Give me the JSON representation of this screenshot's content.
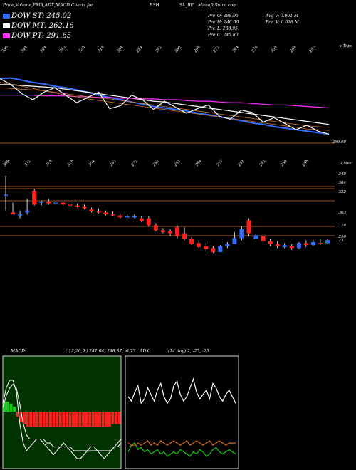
{
  "header": {
    "title": "Price,Volume,EMA,ADX,MACD Charts for",
    "symbol": "BSH",
    "symbol_suffix": "SL_BE",
    "site": "MunafaSutra.com",
    "ohlc": {
      "open": "O: 288.95",
      "high": "H: 246.00",
      "low": "L: 288.95",
      "close": "C: 245.80"
    },
    "prev_labels": [
      "Pre",
      "Pre",
      "Pre",
      "Pre"
    ],
    "avg_volume": "Avg V: 0.001 M",
    "prev_volume_label": "Pre",
    "prev_volume": "V: 0.018 M"
  },
  "legend": [
    {
      "label": "DOW ST: 245.02",
      "color": "#2f6cff"
    },
    {
      "label": "DOW MT: 262.16",
      "color": "#ffffff"
    },
    {
      "label": "DOW PT: 291.65",
      "color": "#ff33ff"
    }
  ],
  "colors": {
    "up": "#2f6cff",
    "down": "#ff2020",
    "grid": "#c87533",
    "macd_hist": "#ff2020",
    "adx_green": "#11cc11",
    "adx_orange": "#e07010"
  },
  "chart_data": [
    {
      "type": "line",
      "name": "ema-panel",
      "top_ticks": [
        "360",
        "348",
        "344",
        "340",
        "328",
        "316",
        "308",
        "284",
        "292",
        "280",
        "296",
        "272",
        "264",
        "276",
        "254",
        "264",
        "240"
      ],
      "top_right_label": "x Topo",
      "bottom_ticks": [
        "369",
        "332",
        "326",
        "318",
        "304",
        "292",
        "272",
        "292",
        "283",
        "264",
        "277",
        "251",
        "242",
        "258",
        "258"
      ],
      "price_label": "290.00",
      "series": [
        {
          "color": "#2f6cff",
          "values": [
            340,
            341,
            338,
            335,
            333,
            330,
            328,
            325,
            322,
            318,
            315,
            312,
            309,
            306,
            303,
            301,
            299,
            297,
            294,
            292,
            289,
            287,
            284,
            281,
            279,
            276,
            274,
            272,
            270,
            268,
            266
          ]
        },
        {
          "color": "#ffffff",
          "values": [
            332,
            332,
            331,
            330,
            329,
            328,
            326,
            324,
            322,
            320,
            318,
            316,
            314,
            312,
            310,
            309,
            307,
            305,
            303,
            301,
            299,
            297,
            295,
            293,
            291,
            289,
            287,
            285,
            283,
            281,
            279
          ]
        },
        {
          "color": "#ff33ff",
          "values": [
            318,
            318,
            318,
            318,
            317,
            317,
            317,
            316,
            316,
            315,
            315,
            314,
            314,
            313,
            313,
            312,
            312,
            311,
            310,
            310,
            309,
            308,
            308,
            307,
            306,
            305,
            305,
            304,
            303,
            302,
            301
          ]
        }
      ]
    },
    {
      "type": "candlestick",
      "name": "price-panel",
      "price_labels": [
        "384",
        "348",
        "322",
        "303",
        "28",
        "250",
        "237"
      ],
      "title": "Lows",
      "candles": [
        {
          "o": 316,
          "h": 335,
          "l": 300,
          "c": 316
        },
        {
          "o": 298,
          "h": 308,
          "l": 296,
          "c": 296
        },
        {
          "o": 296,
          "h": 300,
          "l": 292,
          "c": 296
        },
        {
          "o": 298,
          "h": 312,
          "l": 296,
          "c": 300
        },
        {
          "o": 320,
          "h": 322,
          "l": 305,
          "c": 306
        },
        {
          "o": 308,
          "h": 310,
          "l": 305,
          "c": 309
        },
        {
          "o": 309,
          "h": 312,
          "l": 306,
          "c": 307
        },
        {
          "o": 307,
          "h": 310,
          "l": 306,
          "c": 308
        },
        {
          "o": 308,
          "h": 309,
          "l": 305,
          "c": 306
        },
        {
          "o": 306,
          "h": 307,
          "l": 304,
          "c": 305
        },
        {
          "o": 305,
          "h": 307,
          "l": 303,
          "c": 304
        },
        {
          "o": 304,
          "h": 306,
          "l": 301,
          "c": 302
        },
        {
          "o": 301,
          "h": 303,
          "l": 298,
          "c": 299
        },
        {
          "o": 299,
          "h": 302,
          "l": 297,
          "c": 298
        },
        {
          "o": 298,
          "h": 300,
          "l": 295,
          "c": 296
        },
        {
          "o": 296,
          "h": 299,
          "l": 294,
          "c": 295
        },
        {
          "o": 295,
          "h": 297,
          "l": 292,
          "c": 293
        },
        {
          "o": 293,
          "h": 296,
          "l": 291,
          "c": 294
        },
        {
          "o": 294,
          "h": 296,
          "l": 292,
          "c": 294
        },
        {
          "o": 292,
          "h": 294,
          "l": 288,
          "c": 289
        },
        {
          "o": 292,
          "h": 294,
          "l": 284,
          "c": 285
        },
        {
          "o": 285,
          "h": 287,
          "l": 279,
          "c": 280
        },
        {
          "o": 280,
          "h": 282,
          "l": 277,
          "c": 278
        },
        {
          "o": 279,
          "h": 281,
          "l": 274,
          "c": 277
        },
        {
          "o": 283,
          "h": 285,
          "l": 272,
          "c": 274
        },
        {
          "o": 277,
          "h": 283,
          "l": 270,
          "c": 271
        },
        {
          "o": 271,
          "h": 273,
          "l": 265,
          "c": 266
        },
        {
          "o": 267,
          "h": 270,
          "l": 262,
          "c": 263
        },
        {
          "o": 264,
          "h": 267,
          "l": 258,
          "c": 261
        },
        {
          "o": 262,
          "h": 264,
          "l": 257,
          "c": 258
        },
        {
          "o": 258,
          "h": 265,
          "l": 258,
          "c": 264
        },
        {
          "o": 264,
          "h": 268,
          "l": 262,
          "c": 266
        },
        {
          "o": 266,
          "h": 278,
          "l": 266,
          "c": 272
        },
        {
          "o": 272,
          "h": 284,
          "l": 270,
          "c": 281
        },
        {
          "o": 290,
          "h": 292,
          "l": 274,
          "c": 277
        },
        {
          "o": 271,
          "h": 276,
          "l": 268,
          "c": 275
        },
        {
          "o": 274,
          "h": 276,
          "l": 267,
          "c": 269
        },
        {
          "o": 269,
          "h": 271,
          "l": 264,
          "c": 266
        },
        {
          "o": 266,
          "h": 269,
          "l": 262,
          "c": 264
        },
        {
          "o": 263,
          "h": 267,
          "l": 262,
          "c": 265
        },
        {
          "o": 264,
          "h": 266,
          "l": 260,
          "c": 262
        },
        {
          "o": 262,
          "h": 268,
          "l": 261,
          "c": 267
        },
        {
          "o": 267,
          "h": 270,
          "l": 263,
          "c": 265
        },
        {
          "o": 265,
          "h": 270,
          "l": 264,
          "c": 268
        },
        {
          "o": 267,
          "h": 271,
          "l": 265,
          "c": 266
        },
        {
          "o": 267,
          "h": 271,
          "l": 266,
          "c": 270
        }
      ]
    },
    {
      "type": "bar",
      "name": "macd-panel",
      "label": "MACD:",
      "params": "( 12,26,9 ) 241.64, 248.37, -6.73",
      "histogram": [
        4,
        4,
        3,
        2,
        -2,
        -4,
        -5,
        -6,
        -6,
        -6,
        -6,
        -6,
        -6,
        -6,
        -6,
        -6,
        -6,
        -6,
        -6,
        -6,
        -6,
        -6,
        -6,
        -6,
        -6,
        -6,
        -6,
        -6,
        -6,
        -6,
        -6,
        -6,
        -6,
        -5,
        -5,
        -5
      ],
      "series": [
        {
          "color": "#ffffff",
          "values": [
            2,
            6,
            8,
            8,
            5,
            -3,
            -8,
            -10,
            -9,
            -8,
            -7,
            -7,
            -8,
            -9,
            -10,
            -11,
            -10,
            -9,
            -8,
            -9,
            -10,
            -11,
            -12,
            -12,
            -11,
            -10,
            -9,
            -9,
            -10,
            -11,
            -12,
            -11,
            -10,
            -9,
            -8,
            -7
          ]
        },
        {
          "color": "#ffffff",
          "values": [
            1,
            4,
            6,
            7,
            6,
            2,
            -3,
            -6,
            -7,
            -7,
            -7,
            -7,
            -7,
            -8,
            -8,
            -9,
            -9,
            -9,
            -9,
            -9,
            -9,
            -10,
            -10,
            -10,
            -10,
            -10,
            -10,
            -10,
            -10,
            -10,
            -10,
            -10,
            -10,
            -9,
            -9,
            -8
          ]
        }
      ]
    },
    {
      "type": "line",
      "name": "adx-panel",
      "label": "ADX",
      "params": "(14 day) 2, -25, -25",
      "series": [
        {
          "color": "#ffffff",
          "values": [
            30,
            28,
            32,
            35,
            27,
            29,
            34,
            31,
            28,
            33,
            36,
            30,
            27,
            29,
            35,
            37,
            31,
            28,
            30,
            34,
            38,
            32,
            29,
            31,
            33,
            29,
            36,
            34,
            30,
            28,
            31,
            33,
            30,
            27
          ]
        },
        {
          "color": "#11cc11",
          "values": [
            5,
            8,
            9,
            6,
            7,
            5,
            6,
            4,
            5,
            6,
            4,
            5,
            3,
            4,
            5,
            4,
            6,
            5,
            4,
            3,
            5,
            4,
            6,
            5,
            3,
            4,
            6,
            7,
            5,
            4,
            5,
            6,
            5,
            4
          ]
        },
        {
          "color": "#e07010",
          "values": [
            9,
            8,
            8,
            9,
            8,
            9,
            10,
            8,
            9,
            8,
            10,
            9,
            8,
            9,
            10,
            9,
            8,
            9,
            10,
            8,
            9,
            10,
            9,
            8,
            9,
            10,
            8,
            9,
            10,
            9,
            8,
            9,
            9,
            9
          ]
        }
      ]
    }
  ]
}
